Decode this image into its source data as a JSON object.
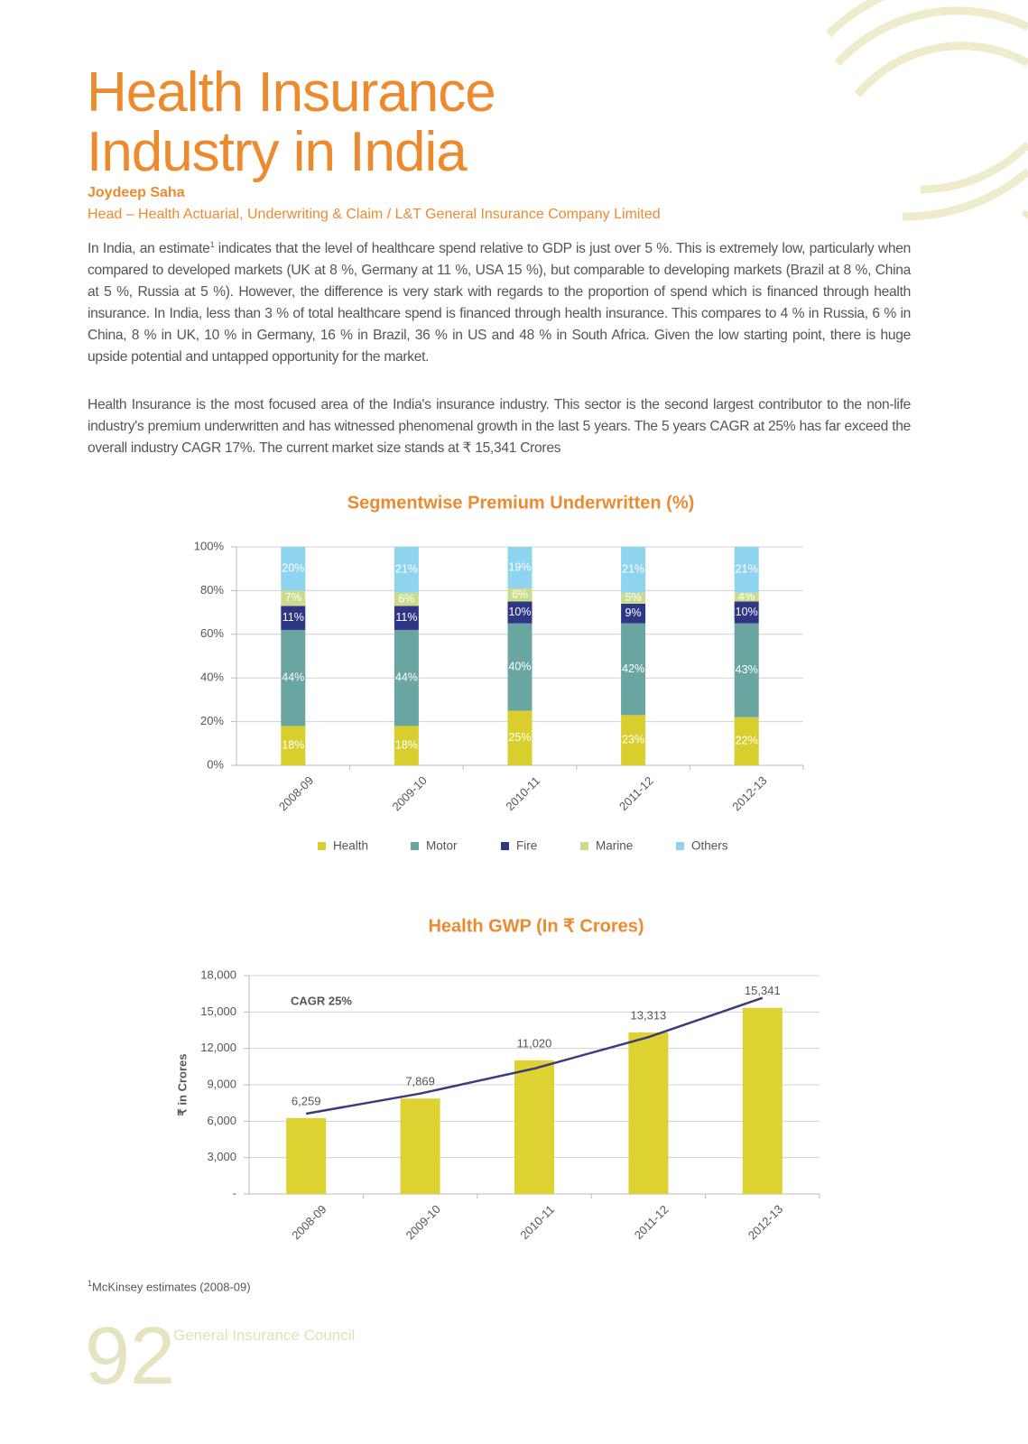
{
  "title_lines": [
    "Health Insurance",
    "Industry in India"
  ],
  "author": "Joydeep Saha",
  "role": "Head – Health Actuarial, Underwriting & Claim / L&T General Insurance Company Limited",
  "paragraph_1": {
    "before": "In India, an estimate",
    "sup": "1",
    "after": " indicates that the level of healthcare spend relative to GDP is just over 5 %. This is extremely low, particularly when compared to developed markets (UK at 8 %, Germany at 11 %, USA 15 %), but comparable to developing markets (Brazil at 8 %, China at 5 %, Russia at 5 %). However, the difference is very stark with regards to the proportion of spend which is financed through health insurance. In India, less than 3 % of total healthcare spend is financed through health insurance. This compares to 4 % in Russia, 6 % in China, 8 % in UK, 10 % in Germany, 16 % in Brazil, 36 % in US and 48 % in South Africa. Given the low starting point, there is huge upside potential and untapped opportunity for the market."
  },
  "paragraph_2": "Health Insurance is the most focused area of the India's insurance industry. This sector is the second largest contributor to the non-life industry's premium underwritten and has witnessed phenomenal growth in the last 5 years. The 5 years CAGR at 25% has far exceed the overall industry CAGR 17%. The current market size stands at ₹ 15,341 Crores",
  "chart_data": [
    {
      "type": "stacked_bar",
      "title": "Segmentwise Premium Underwritten (%)",
      "categories": [
        "2008-09",
        "2009-10",
        "2010-11",
        "2011-12",
        "2012-13"
      ],
      "series": [
        {
          "name": "Health",
          "color": "#d8cf2f",
          "values": [
            18,
            18,
            25,
            23,
            22
          ],
          "value_labels": [
            "18%",
            "18%",
            "25%",
            "23%",
            "22%"
          ]
        },
        {
          "name": "Motor",
          "color": "#6aa6a1",
          "values": [
            44,
            44,
            40,
            42,
            43
          ],
          "value_labels": [
            "44%",
            "44%",
            "40%",
            "42%",
            "43%"
          ]
        },
        {
          "name": "Fire",
          "color": "#2f3686",
          "values": [
            11,
            11,
            10,
            9,
            10
          ],
          "value_labels": [
            "11%",
            "11%",
            "10%",
            "9%",
            "10%"
          ]
        },
        {
          "name": "Marine",
          "color": "#cadd8c",
          "values": [
            7,
            6,
            6,
            5,
            4
          ],
          "value_labels": [
            "7%",
            "6%",
            "6%",
            "5%",
            "4%"
          ]
        },
        {
          "name": "Others",
          "color": "#8fd4ef",
          "values": [
            20,
            21,
            19,
            21,
            21
          ],
          "value_labels": [
            "20%",
            "21%",
            "19%",
            "21%",
            "21%"
          ]
        }
      ],
      "ylim": [
        0,
        100
      ],
      "yticks": [
        {
          "value": 0,
          "label": "0%"
        },
        {
          "value": 20,
          "label": "20%"
        },
        {
          "value": 40,
          "label": "40%"
        },
        {
          "value": 60,
          "label": "60%"
        },
        {
          "value": 80,
          "label": "80%"
        },
        {
          "value": 100,
          "label": "100%"
        }
      ],
      "grid": true,
      "legend": "bottom"
    },
    {
      "type": "bar_line",
      "title": "Health GWP (In ₹ Crores)",
      "ylabel": "₹ in Crores",
      "categories": [
        "2008-09",
        "2009-10",
        "2010-11",
        "2011-12",
        "2012-13"
      ],
      "values": [
        6259,
        7869,
        11020,
        13313,
        15341
      ],
      "value_labels": [
        "6,259",
        "7,869",
        "11,020",
        "13,313",
        "15,341"
      ],
      "color": "#ddd231",
      "trend": {
        "label": "CAGR 25%",
        "color": "#3d3b7c",
        "values": [
          6620,
          8280,
          10340,
          12930,
          16160
        ]
      },
      "ylim": [
        0,
        18000
      ],
      "yticks": [
        {
          "value": 0,
          "label": "-"
        },
        {
          "value": 3000,
          "label": "3,000"
        },
        {
          "value": 6000,
          "label": "6,000"
        },
        {
          "value": 9000,
          "label": "9,000"
        },
        {
          "value": 12000,
          "label": "12,000"
        },
        {
          "value": 15000,
          "label": "15,000"
        },
        {
          "value": 18000,
          "label": "18,000"
        }
      ],
      "grid": true
    }
  ],
  "footnote": {
    "mark": "1",
    "text": "McKinsey estimates (2008-09)"
  },
  "footer": {
    "page": "92",
    "publication": "General Insurance Council"
  }
}
